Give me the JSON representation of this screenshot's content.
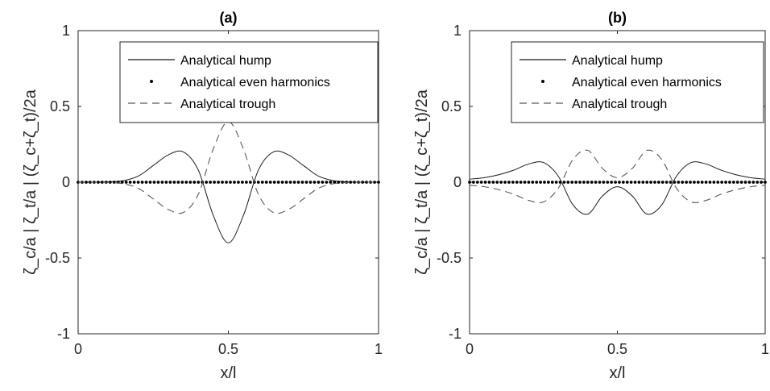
{
  "chart_data": [
    {
      "type": "line",
      "title": "(a)",
      "xlabel": "x/l",
      "ylabel": "ζ_c/a | ζ_t/a | (ζ_c+ζ_t)/2a",
      "xlim": [
        0,
        1
      ],
      "ylim": [
        -1,
        1
      ],
      "xticks": [
        0,
        0.5,
        1
      ],
      "yticks": [
        -1,
        -0.5,
        0,
        0.5,
        1
      ],
      "xtick_labels": [
        "0",
        "0.5",
        "1"
      ],
      "ytick_labels": [
        "-1",
        "-0.5",
        "0",
        "0.5",
        "1"
      ],
      "grid": false,
      "legend_position": "top-center",
      "x": [
        0,
        0.05,
        0.1,
        0.15,
        0.2,
        0.25,
        0.3,
        0.35,
        0.4,
        0.45,
        0.5,
        0.55,
        0.6,
        0.65,
        0.7,
        0.75,
        0.8,
        0.85,
        0.9,
        0.95,
        1
      ],
      "series": [
        {
          "name": "Analytical hump",
          "style": "solid",
          "values": [
            0,
            0,
            0.002,
            0.01,
            0.04,
            0.11,
            0.18,
            0.2,
            0.08,
            -0.22,
            -0.4,
            -0.22,
            0.08,
            0.2,
            0.18,
            0.11,
            0.04,
            0.01,
            0.002,
            0,
            0
          ]
        },
        {
          "name": "Analytical even harmonics",
          "style": "dots",
          "values": [
            0,
            0,
            0,
            0,
            0,
            0,
            0,
            0,
            0,
            0,
            0,
            0,
            0,
            0,
            0,
            0,
            0,
            0,
            0,
            0,
            0
          ]
        },
        {
          "name": "Analytical trough",
          "style": "dashed",
          "values": [
            0,
            0,
            -0.002,
            -0.01,
            -0.04,
            -0.11,
            -0.18,
            -0.2,
            -0.08,
            0.22,
            0.4,
            0.22,
            -0.08,
            -0.2,
            -0.18,
            -0.11,
            -0.04,
            -0.01,
            -0.002,
            0,
            0
          ]
        }
      ]
    },
    {
      "type": "line",
      "title": "(b)",
      "xlabel": "x/l",
      "ylabel": "ζ_c/a | ζ_t/a | (ζ_c+ζ_t)/2a",
      "xlim": [
        0,
        1
      ],
      "ylim": [
        -1,
        1
      ],
      "xticks": [
        0,
        0.5,
        1
      ],
      "yticks": [
        -1,
        -0.5,
        0,
        0.5,
        1
      ],
      "xtick_labels": [
        "0",
        "0.5",
        "1"
      ],
      "ytick_labels": [
        "-1",
        "-0.5",
        "0",
        "0.5",
        "1"
      ],
      "grid": false,
      "legend_position": "top-center",
      "x": [
        0,
        0.05,
        0.1,
        0.15,
        0.2,
        0.25,
        0.3,
        0.35,
        0.4,
        0.45,
        0.5,
        0.55,
        0.6,
        0.65,
        0.7,
        0.75,
        0.8,
        0.85,
        0.9,
        0.95,
        1
      ],
      "series": [
        {
          "name": "Analytical hump",
          "style": "solid",
          "values": [
            0.02,
            0.03,
            0.05,
            0.08,
            0.12,
            0.13,
            0.04,
            -0.15,
            -0.21,
            -0.09,
            -0.03,
            -0.09,
            -0.21,
            -0.15,
            0.04,
            0.13,
            0.12,
            0.08,
            0.05,
            0.03,
            0.02
          ]
        },
        {
          "name": "Analytical even harmonics",
          "style": "dots",
          "values": [
            0,
            0,
            0,
            0,
            0,
            0,
            0,
            0,
            0,
            0,
            0,
            0,
            0,
            0,
            0,
            0,
            0,
            0,
            0,
            0,
            0
          ]
        },
        {
          "name": "Analytical trough",
          "style": "dashed",
          "values": [
            -0.02,
            -0.03,
            -0.05,
            -0.08,
            -0.12,
            -0.13,
            -0.04,
            0.15,
            0.21,
            0.09,
            0.03,
            0.09,
            0.21,
            0.15,
            -0.04,
            -0.13,
            -0.12,
            -0.08,
            -0.05,
            -0.03,
            -0.02
          ]
        }
      ]
    }
  ]
}
